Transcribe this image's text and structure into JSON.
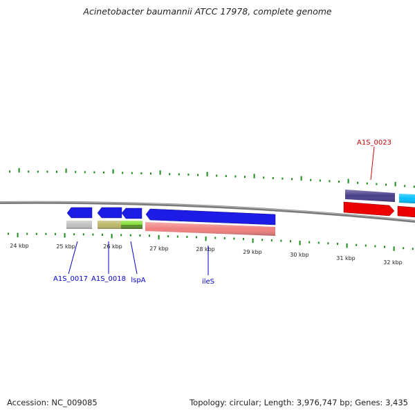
{
  "title": "Acinetobacter baumannii ATCC 17978, complete genome",
  "footer": {
    "accession": "Accession: NC_009085",
    "summary": "Topology: circular; Length: 3,976,747 bp; Genes: 3,435"
  },
  "axis": {
    "ticks": [
      "24 kbp",
      "25 kbp",
      "26 kbp",
      "27 kbp",
      "28 kbp",
      "29 kbp",
      "30 kbp",
      "31 kbp",
      "32 kbp"
    ]
  },
  "genes": [
    {
      "id": "A1S_0017",
      "label": "A1S_0017",
      "label_color": "#0000cc",
      "strand": "-",
      "color": "#1c1ce6",
      "cog_color": "#c0c0c0"
    },
    {
      "id": "A1S_0018",
      "label": "A1S_0018",
      "label_color": "#0000cc",
      "strand": "-",
      "color": "#1c1ce6",
      "cog_color": "#bdb76b"
    },
    {
      "id": "lspA",
      "label": "lspA",
      "label_color": "#0000cc",
      "strand": "-",
      "color": "#1c1ce6",
      "cog_color": "#7fe030"
    },
    {
      "id": "ileS",
      "label": "ileS",
      "label_color": "#0000cc",
      "strand": "-",
      "color": "#1c1ce6",
      "cog_color": "#f08080"
    },
    {
      "id": "A1S_0023",
      "label": "A1S_0023",
      "label_color": "#cc0000",
      "strand": "+",
      "color": "#ee0000",
      "cog_color": "#483d8b"
    },
    {
      "id": "next-gene",
      "label": "",
      "strand": "+",
      "color": "#ee0000",
      "cog_color": "#00bfff"
    }
  ]
}
